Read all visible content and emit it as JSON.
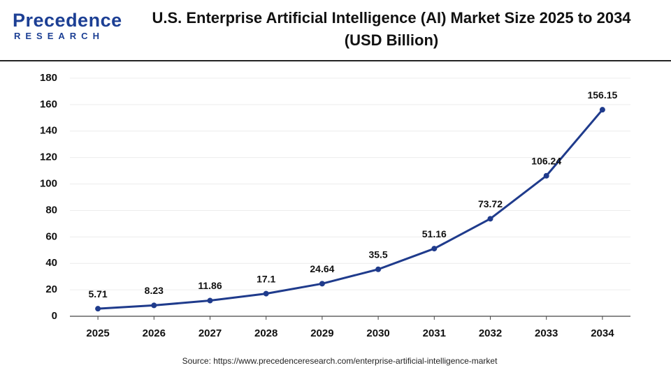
{
  "logo": {
    "name": "Precedence",
    "tagline": "RESEARCH"
  },
  "chart_data": {
    "type": "line",
    "title": "U.S. Enterprise Artificial Intelligence (AI) Market Size 2025 to 2034 (USD Billion)",
    "categories": [
      "2025",
      "2026",
      "2027",
      "2028",
      "2029",
      "2030",
      "2031",
      "2032",
      "2033",
      "2034"
    ],
    "values": [
      5.71,
      8.23,
      11.86,
      17.1,
      24.64,
      35.5,
      51.16,
      73.72,
      106.24,
      156.15
    ],
    "color": "#1f3b8c",
    "ylim": [
      0,
      180
    ],
    "yticks": [
      0,
      20,
      40,
      60,
      80,
      100,
      120,
      140,
      160,
      180
    ],
    "grid": true,
    "source": "Source: https://www.precedenceresearch.com/enterprise-artificial-intelligence-market"
  }
}
